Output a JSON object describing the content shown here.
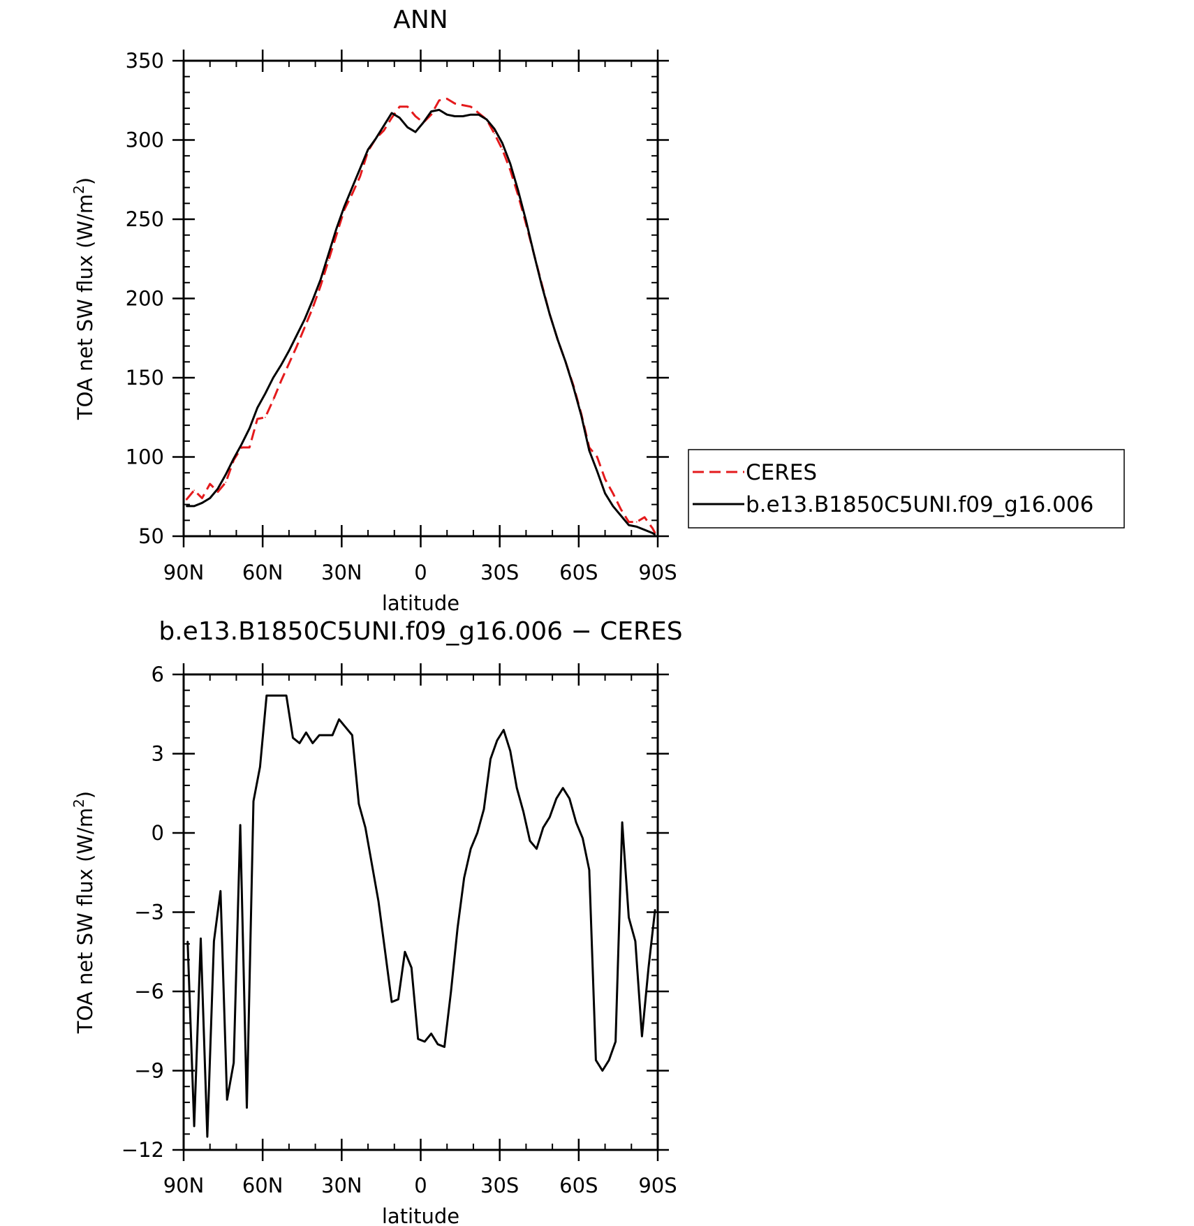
{
  "chart_data": [
    {
      "type": "line",
      "title": "ANN",
      "xlabel": "latitude",
      "ylabel_main": "TOA net SW flux (W/m",
      "ylabel_sup": "2",
      "ylabel_close": ")",
      "xlim": [
        90,
        -90
      ],
      "ylim": [
        50,
        350
      ],
      "x_ticks": [
        {
          "value": 90,
          "label": "90N"
        },
        {
          "value": 60,
          "label": "60N"
        },
        {
          "value": 30,
          "label": "30N"
        },
        {
          "value": 0,
          "label": "0"
        },
        {
          "value": -30,
          "label": "30S"
        },
        {
          "value": -60,
          "label": "60S"
        },
        {
          "value": -90,
          "label": "90S"
        }
      ],
      "y_ticks": [
        {
          "value": 50,
          "label": "50"
        },
        {
          "value": 100,
          "label": "100"
        },
        {
          "value": 150,
          "label": "150"
        },
        {
          "value": 200,
          "label": "200"
        },
        {
          "value": 250,
          "label": "250"
        },
        {
          "value": 300,
          "label": "300"
        },
        {
          "value": 350,
          "label": "350"
        }
      ],
      "legend": {
        "placement": "right"
      },
      "series": [
        {
          "name": "CERES",
          "color": "#e41a1c",
          "style": "dashed",
          "x": [
            89,
            86,
            83,
            80,
            77,
            74,
            71,
            68,
            65,
            62,
            59,
            56,
            53,
            50,
            47,
            44,
            41,
            38,
            35,
            32,
            29,
            26,
            23,
            20,
            17,
            14,
            11,
            8,
            5,
            2,
            -1,
            -4,
            -7,
            -10,
            -13,
            -16,
            -19,
            -22,
            -25,
            -28,
            -31,
            -34,
            -37,
            -40,
            -43,
            -46,
            -49,
            -52,
            -55,
            -58,
            -61,
            -64,
            -67,
            -70,
            -73,
            -76,
            -79,
            -82,
            -85,
            -88,
            -89
          ],
          "y": [
            73,
            79,
            74,
            83,
            78,
            84,
            98,
            106,
            106,
            124,
            125,
            136,
            148,
            159,
            170,
            182,
            194,
            208,
            224,
            240,
            256,
            266,
            277,
            293,
            301,
            306,
            314,
            321,
            321,
            315,
            311,
            316,
            325,
            326,
            323,
            322,
            321,
            317,
            313,
            304,
            294,
            281,
            265,
            247,
            228,
            209,
            190,
            174,
            160,
            145,
            127,
            106,
            100,
            86,
            77,
            67,
            59,
            59,
            62,
            55,
            52
          ]
        },
        {
          "name": "b.e13.B1850C5UNI.f09_g16.006",
          "color": "#000000",
          "style": "solid",
          "x": [
            89,
            86,
            83,
            80,
            77,
            74,
            71,
            68,
            65,
            62,
            59,
            56,
            53,
            50,
            47,
            44,
            41,
            38,
            35,
            32,
            29,
            26,
            23,
            20,
            17,
            14,
            11,
            8,
            5,
            2,
            -1,
            -4,
            -7,
            -10,
            -13,
            -16,
            -19,
            -22,
            -25,
            -28,
            -31,
            -34,
            -37,
            -40,
            -43,
            -46,
            -49,
            -52,
            -55,
            -58,
            -61,
            -64,
            -67,
            -70,
            -73,
            -76,
            -79,
            -82,
            -85,
            -88,
            -89
          ],
          "y": [
            69,
            69,
            71,
            74,
            80,
            89,
            99,
            108,
            118,
            131,
            140,
            150,
            158,
            167,
            177,
            187,
            199,
            212,
            228,
            244,
            258,
            270,
            282,
            294,
            301,
            309,
            317,
            314,
            308,
            305,
            311,
            318,
            319,
            316,
            315,
            315,
            316,
            316,
            313,
            307,
            298,
            285,
            268,
            249,
            228,
            208,
            190,
            174,
            160,
            144,
            126,
            104,
            91,
            77,
            69,
            63,
            57,
            56,
            54,
            52,
            51
          ]
        }
      ]
    },
    {
      "type": "line",
      "title": "b.e13.B1850C5UNI.f09_g16.006 − CERES",
      "xlabel": "latitude",
      "ylabel_main": "TOA net SW flux (W/m",
      "ylabel_sup": "2",
      "ylabel_close": ")",
      "xlim": [
        90,
        -90
      ],
      "ylim": [
        -12,
        6
      ],
      "x_ticks": [
        {
          "value": 90,
          "label": "90N"
        },
        {
          "value": 60,
          "label": "60N"
        },
        {
          "value": 30,
          "label": "30N"
        },
        {
          "value": 0,
          "label": "0"
        },
        {
          "value": -30,
          "label": "30S"
        },
        {
          "value": -60,
          "label": "60S"
        },
        {
          "value": -90,
          "label": "90S"
        }
      ],
      "y_ticks": [
        {
          "value": 6,
          "label": "6"
        },
        {
          "value": 3,
          "label": "3"
        },
        {
          "value": 0,
          "label": "0"
        },
        {
          "value": -3,
          "label": "−3"
        },
        {
          "value": -6,
          "label": "−6"
        },
        {
          "value": -9,
          "label": "−9"
        },
        {
          "value": -12,
          "label": "−12"
        }
      ],
      "series": [
        {
          "color": "#000000",
          "style": "solid",
          "x": [
            88.5,
            86,
            83.5,
            81,
            78.5,
            76,
            73.5,
            71,
            68.5,
            66,
            63.5,
            61,
            58.5,
            56,
            53.5,
            51,
            48.5,
            46,
            43.5,
            41,
            38.5,
            36,
            33.5,
            31,
            28.5,
            26,
            23.5,
            21,
            18.5,
            16,
            13.5,
            11,
            8.5,
            6,
            3.5,
            1,
            -1.5,
            -4,
            -6.5,
            -9,
            -11.5,
            -14,
            -16.5,
            -19,
            -21.5,
            -24,
            -26.5,
            -29,
            -31.5,
            -34,
            -36.5,
            -39,
            -41.5,
            -44,
            -46.5,
            -49,
            -51.5,
            -54,
            -56.5,
            -59,
            -61.5,
            -64,
            -66.5,
            -69,
            -71.5,
            -74,
            -76.5,
            -79,
            -81.5,
            -84,
            -86.5,
            -89
          ],
          "y": [
            -4.1,
            -11.1,
            -4.0,
            -11.5,
            -4.1,
            -2.2,
            -10.1,
            -8.7,
            0.3,
            -10.4,
            1.2,
            2.5,
            5.2,
            5.2,
            5.2,
            5.2,
            3.6,
            3.4,
            3.8,
            3.4,
            3.7,
            3.7,
            3.7,
            4.3,
            4.0,
            3.7,
            1.1,
            0.2,
            -1.2,
            -2.6,
            -4.5,
            -6.4,
            -6.3,
            -4.5,
            -5.1,
            -7.8,
            -7.9,
            -7.6,
            -8.0,
            -8.1,
            -6.0,
            -3.6,
            -1.7,
            -0.6,
            0.0,
            0.9,
            2.8,
            3.5,
            3.9,
            3.1,
            1.7,
            0.8,
            -0.3,
            -0.6,
            0.2,
            0.6,
            1.3,
            1.7,
            1.3,
            0.4,
            -0.2,
            -1.4,
            -8.6,
            -9.0,
            -8.6,
            -7.9,
            0.4,
            -3.2,
            -4.1,
            -7.7,
            -5.1,
            -2.9
          ]
        }
      ]
    }
  ]
}
